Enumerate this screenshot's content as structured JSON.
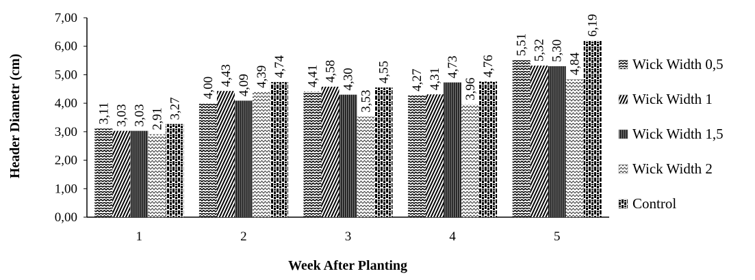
{
  "chart_data": {
    "type": "bar",
    "title": "",
    "xlabel": "Week After Planting",
    "ylabel": "Header Diametr (cm)",
    "categories": [
      "1",
      "2",
      "3",
      "4",
      "5"
    ],
    "ylim": [
      0,
      7
    ],
    "yticks": [
      0,
      1,
      2,
      3,
      4,
      5,
      6,
      7
    ],
    "ytick_labels": [
      "0,00",
      "1,00",
      "2,00",
      "3,00",
      "4,00",
      "5,00",
      "6,00",
      "7,00"
    ],
    "grid": false,
    "legend_position": "right",
    "series": [
      {
        "name": "Wick Width 0,5",
        "values": [
          3.11,
          4.0,
          4.41,
          4.27,
          5.51
        ],
        "labels": [
          "3,11",
          "4,00",
          "4,41",
          "4,27",
          "5,51"
        ],
        "pattern": "zigzag"
      },
      {
        "name": "Wick Width 1",
        "values": [
          3.03,
          4.43,
          4.58,
          4.31,
          5.32
        ],
        "labels": [
          "3,03",
          "4,43",
          "4,58",
          "4,31",
          "5,32"
        ],
        "pattern": "diagonal"
      },
      {
        "name": "Wick Width 1,5",
        "values": [
          3.03,
          4.09,
          4.3,
          4.73,
          5.3
        ],
        "labels": [
          "3,03",
          "4,09",
          "4,30",
          "4,73",
          "5,30"
        ],
        "pattern": "vertical-fine"
      },
      {
        "name": "Wick Width 2",
        "values": [
          2.91,
          4.39,
          3.53,
          3.96,
          4.84
        ],
        "labels": [
          "2,91",
          "4,39",
          "3,53",
          "3,96",
          "4,84"
        ],
        "pattern": "zigzag-light"
      },
      {
        "name": "Control",
        "values": [
          3.27,
          4.74,
          4.55,
          4.76,
          6.19
        ],
        "labels": [
          "3,27",
          "4,74",
          "4,55",
          "4,76",
          "6,19"
        ],
        "pattern": "checker"
      }
    ],
    "colors": {
      "axis": "#000000",
      "text": "#000000",
      "background": "#ffffff"
    }
  }
}
